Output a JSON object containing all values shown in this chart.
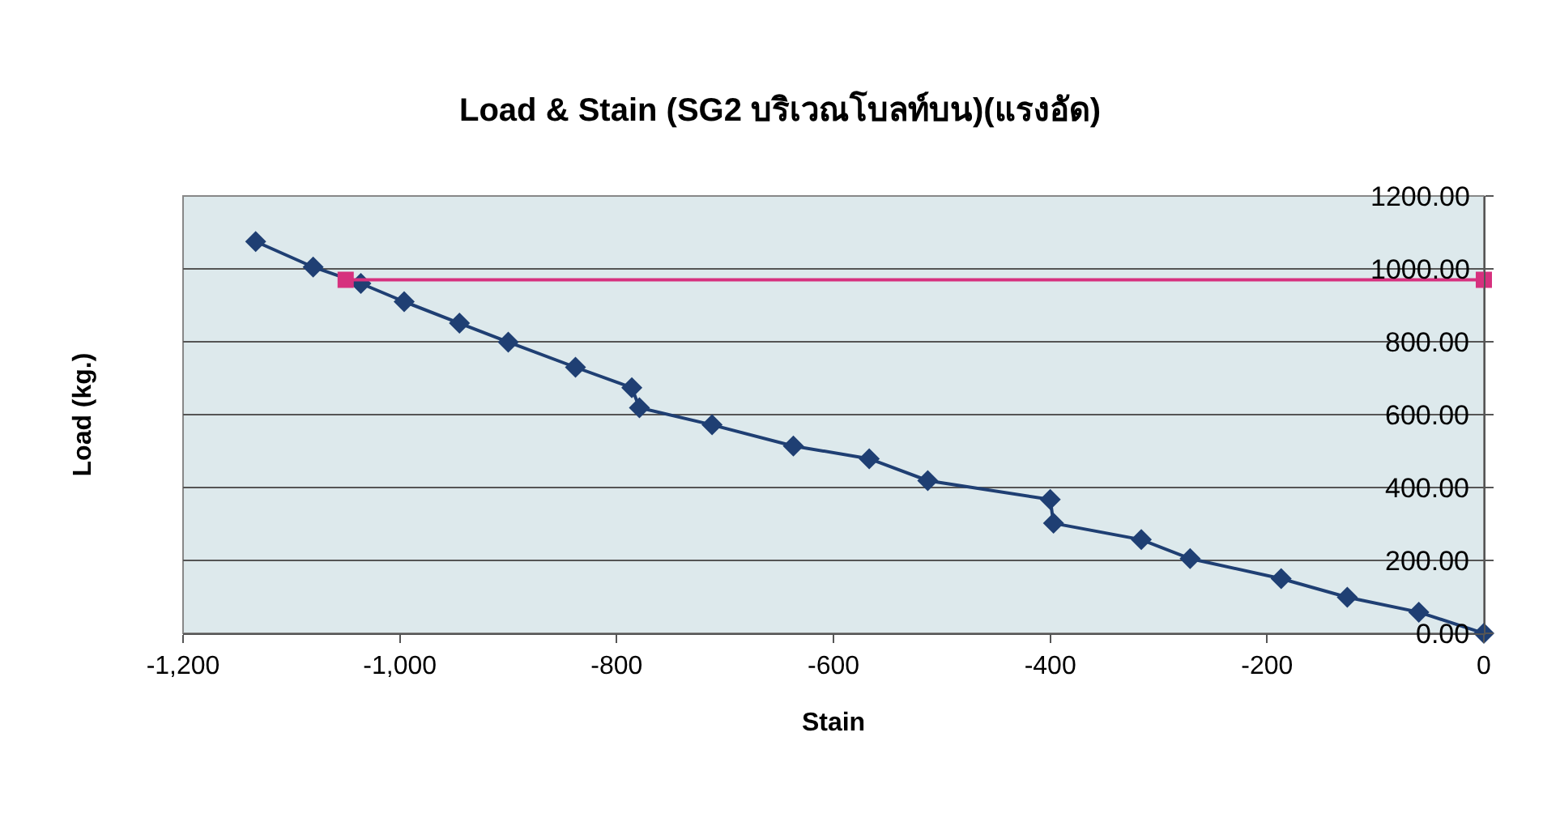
{
  "chart_data": {
    "type": "line",
    "title": "Load & Stain (SG2 บริเวณโบลท์บน)(แรงอัด)",
    "xlabel": "Stain",
    "ylabel": "Load (kg.)",
    "series": [
      {
        "color": "#1f3f73",
        "marker": "diamond",
        "x": [
          -1133,
          -1080,
          -1036,
          -996,
          -945,
          -900,
          -838,
          -786,
          -779,
          -712,
          -637,
          -567,
          -513,
          -400,
          -397,
          -316,
          -271,
          -187,
          -126,
          -60,
          0
        ],
        "values": [
          1075,
          1005,
          960,
          910,
          851,
          799,
          730,
          674,
          619,
          572,
          514,
          479,
          419,
          367,
          302,
          257,
          205,
          150,
          99,
          58,
          0
        ]
      },
      {
        "color": "#d6317e",
        "marker": "square",
        "x": [
          -1050,
          0
        ],
        "values": [
          970,
          970
        ]
      }
    ],
    "xlim": [
      -1200,
      0
    ],
    "xticks": [
      {
        "value": -1200,
        "label": "-1,200"
      },
      {
        "value": -1000,
        "label": "-1,000"
      },
      -800,
      -600,
      -400,
      -200,
      0
    ],
    "ylim": [
      0,
      1200
    ],
    "yticks": [
      {
        "value": 0,
        "label": "0.00"
      },
      {
        "value": 200,
        "label": "200.00"
      },
      {
        "value": 400,
        "label": "400.00"
      },
      {
        "value": 600,
        "label": "600.00"
      },
      {
        "value": 800,
        "label": "800.00"
      },
      {
        "value": 1000,
        "label": "1000.00"
      },
      {
        "value": 1200,
        "label": "1200.00"
      }
    ],
    "grid": "y",
    "line_style": "solid"
  }
}
